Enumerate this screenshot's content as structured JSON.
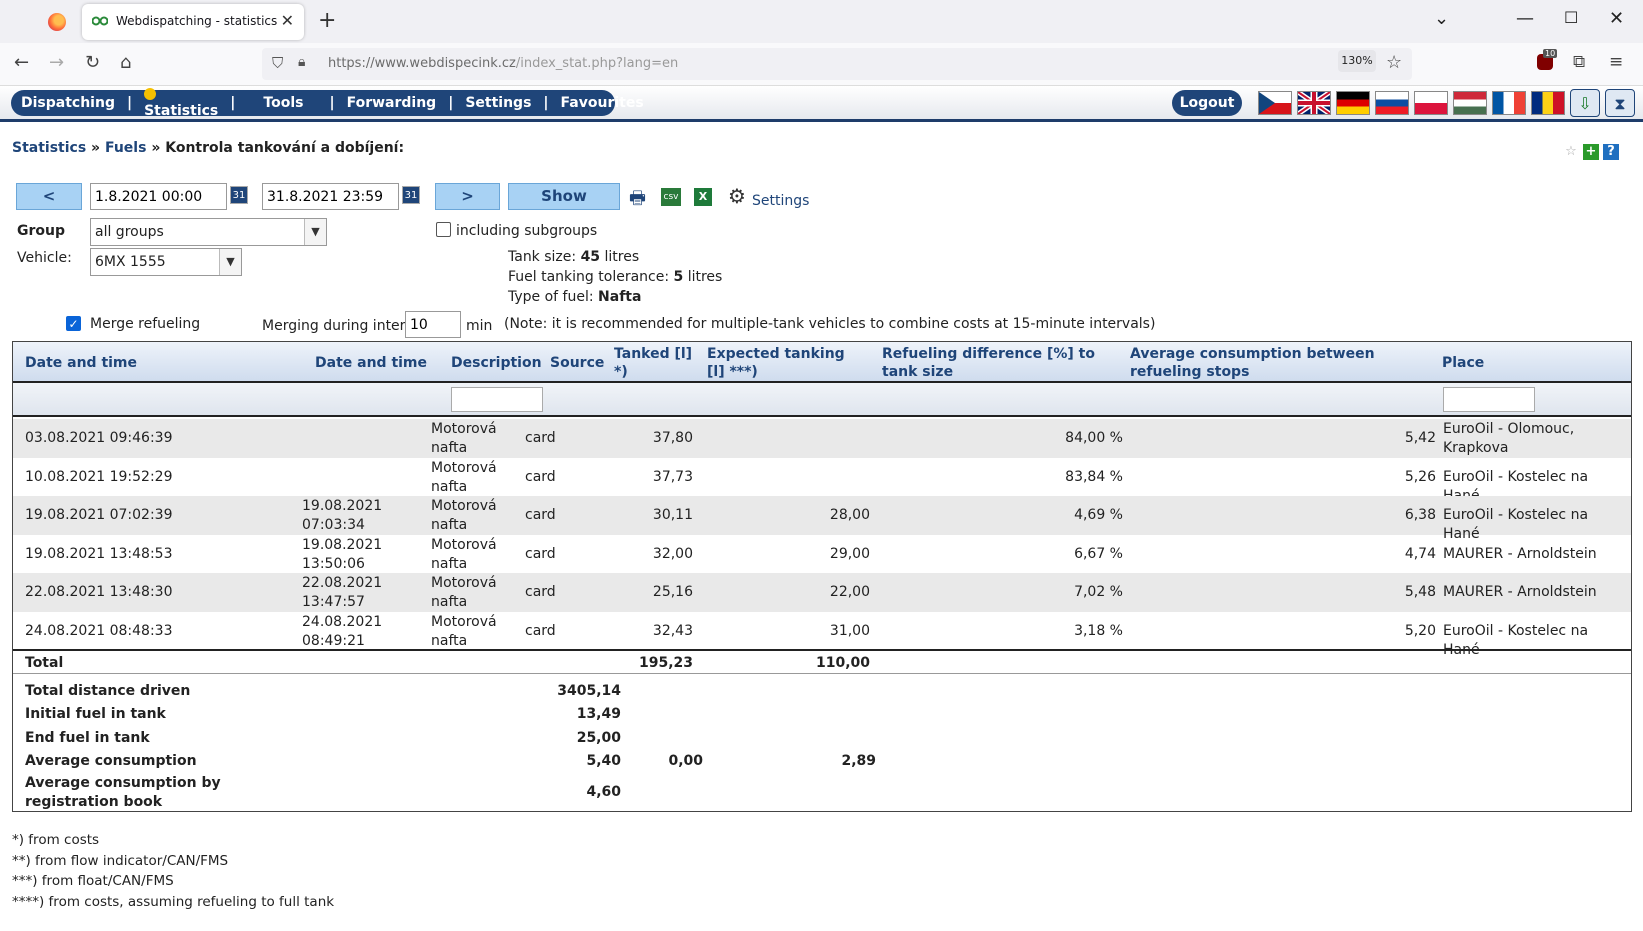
{
  "browser": {
    "tab_title": "Webdispatching - statistics",
    "url_host": "https://www.webdispecink.cz",
    "url_path": "/index_stat.php?lang=en",
    "zoom": "130%",
    "ext_badge": "10"
  },
  "menu": {
    "items": [
      "Dispatching",
      "Statistics",
      "Tools",
      "Forwarding",
      "Settings",
      "Favourites"
    ],
    "logout": "Logout"
  },
  "breadcrumb": {
    "statistics": "Statistics",
    "fuels": "Fuels",
    "sep": "»",
    "current": "Kontrola tankování a dobíjení:"
  },
  "controls": {
    "prev": "<",
    "next": ">",
    "show": "Show",
    "date_from": "1.8.2021 00:00",
    "date_to": "31.8.2021 23:59",
    "cal_label": "31",
    "settings": "Settings",
    "group_label": "Group",
    "group_value": "all groups",
    "subgroups_label": "including subgroups",
    "vehicle_label": "Vehicle:",
    "vehicle_value": "6MX 1555",
    "merge_label": "Merge refueling",
    "merging_interval_label": "Merging during interval",
    "merging_interval_value": "10",
    "merging_unit": "min",
    "merging_note": "(Note: it is recommended for multiple-tank vehicles to combine costs at 15-minute intervals)"
  },
  "vehicle_info": {
    "tank_size_label": "Tank size:",
    "tank_size_value": "45",
    "tank_size_unit": "litres",
    "tolerance_label": "Fuel tanking tolerance:",
    "tolerance_value": "5",
    "tolerance_unit": "litres",
    "fuel_type_label": "Type of fuel:",
    "fuel_type_value": "Nafta"
  },
  "table": {
    "headers": {
      "date1": "Date and time",
      "date2": "Date and time",
      "description": "Description",
      "source": "Source",
      "tanked": "Tanked [l] *)",
      "expected": "Expected tanking [l] ***)",
      "refuel_diff": "Refueling difference [%] to tank size",
      "avg_cons": "Average consumption between refueling stops",
      "place": "Place"
    },
    "rows": [
      {
        "date1": "03.08.2021 09:46:39",
        "date2": "",
        "desc": "Motorová nafta",
        "source": "card",
        "tanked": "37,80",
        "expected": "",
        "diff": "84,00 %",
        "avg": "5,42",
        "place": "EuroOil - Olomouc, Krapkova"
      },
      {
        "date1": "10.08.2021 19:52:29",
        "date2": "",
        "desc": "Motorová nafta",
        "source": "card",
        "tanked": "37,73",
        "expected": "",
        "diff": "83,84 %",
        "avg": "5,26",
        "place": "EuroOil - Kostelec na Hané"
      },
      {
        "date1": "19.08.2021 07:02:39",
        "date2": "19.08.2021 07:03:34",
        "desc": "Motorová nafta",
        "source": "card",
        "tanked": "30,11",
        "expected": "28,00",
        "diff": "4,69 %",
        "avg": "6,38",
        "place": "EuroOil - Kostelec na Hané"
      },
      {
        "date1": "19.08.2021 13:48:53",
        "date2": "19.08.2021 13:50:06",
        "desc": "Motorová nafta",
        "source": "card",
        "tanked": "32,00",
        "expected": "29,00",
        "diff": "6,67 %",
        "avg": "4,74",
        "place": "MAURER - Arnoldstein"
      },
      {
        "date1": "22.08.2021 13:48:30",
        "date2": "22.08.2021 13:47:57",
        "desc": "Motorová nafta",
        "source": "card",
        "tanked": "25,16",
        "expected": "22,00",
        "diff": "7,02 %",
        "avg": "5,48",
        "place": "MAURER - Arnoldstein"
      },
      {
        "date1": "24.08.2021 08:48:33",
        "date2": "24.08.2021 08:49:21",
        "desc": "Motorová nafta",
        "source": "card",
        "tanked": "32,43",
        "expected": "31,00",
        "diff": "3,18 %",
        "avg": "5,20",
        "place": "EuroOil - Kostelec na Hané"
      }
    ],
    "total": {
      "label": "Total",
      "tanked": "195,23",
      "expected": "110,00"
    },
    "summary": {
      "distance_label": "Total distance driven",
      "distance": "3405,14",
      "initial_label": "Initial fuel in tank",
      "initial": "13,49",
      "end_label": "End fuel in tank",
      "end": "25,00",
      "avg_label": "Average consumption",
      "avg": "5,40",
      "avg2": "0,00",
      "avg3": "2,89",
      "book_label": "Average consumption by registration book",
      "book": "4,60"
    }
  },
  "notes": [
    "*) from costs",
    "**) from flow indicator/CAN/FMS",
    "***) from float/CAN/FMS",
    "****) from costs, assuming refueling to full tank"
  ]
}
